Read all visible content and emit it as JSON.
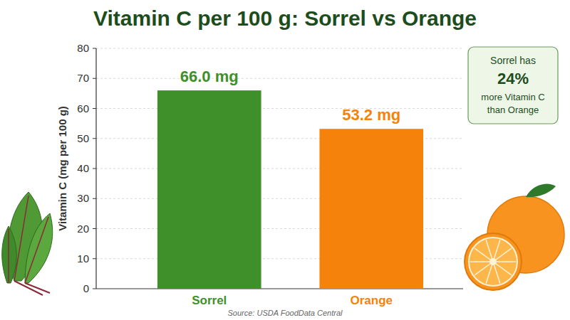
{
  "chart_data": {
    "type": "bar",
    "title": "Vitamin C per 100 g: Sorrel vs Orange",
    "y_label": "Vitamin C (mg per 100 g)",
    "categories": [
      "Sorrel",
      "Orange"
    ],
    "values": [
      66.0,
      53.2
    ],
    "value_labels": [
      "66.0 mg",
      "53.2 mg"
    ],
    "colors": [
      "#3f8f2a",
      "#f5820a"
    ],
    "ylim": [
      0,
      80
    ],
    "yticks": [
      0,
      10,
      20,
      30,
      40,
      50,
      60,
      70,
      80
    ],
    "grid": true,
    "data_labels": true,
    "annotation": {
      "lines": [
        "Sorrel has",
        "24%",
        "more Vitamin C",
        "than Orange"
      ]
    },
    "source": "Source: USDA FoodData Central"
  }
}
